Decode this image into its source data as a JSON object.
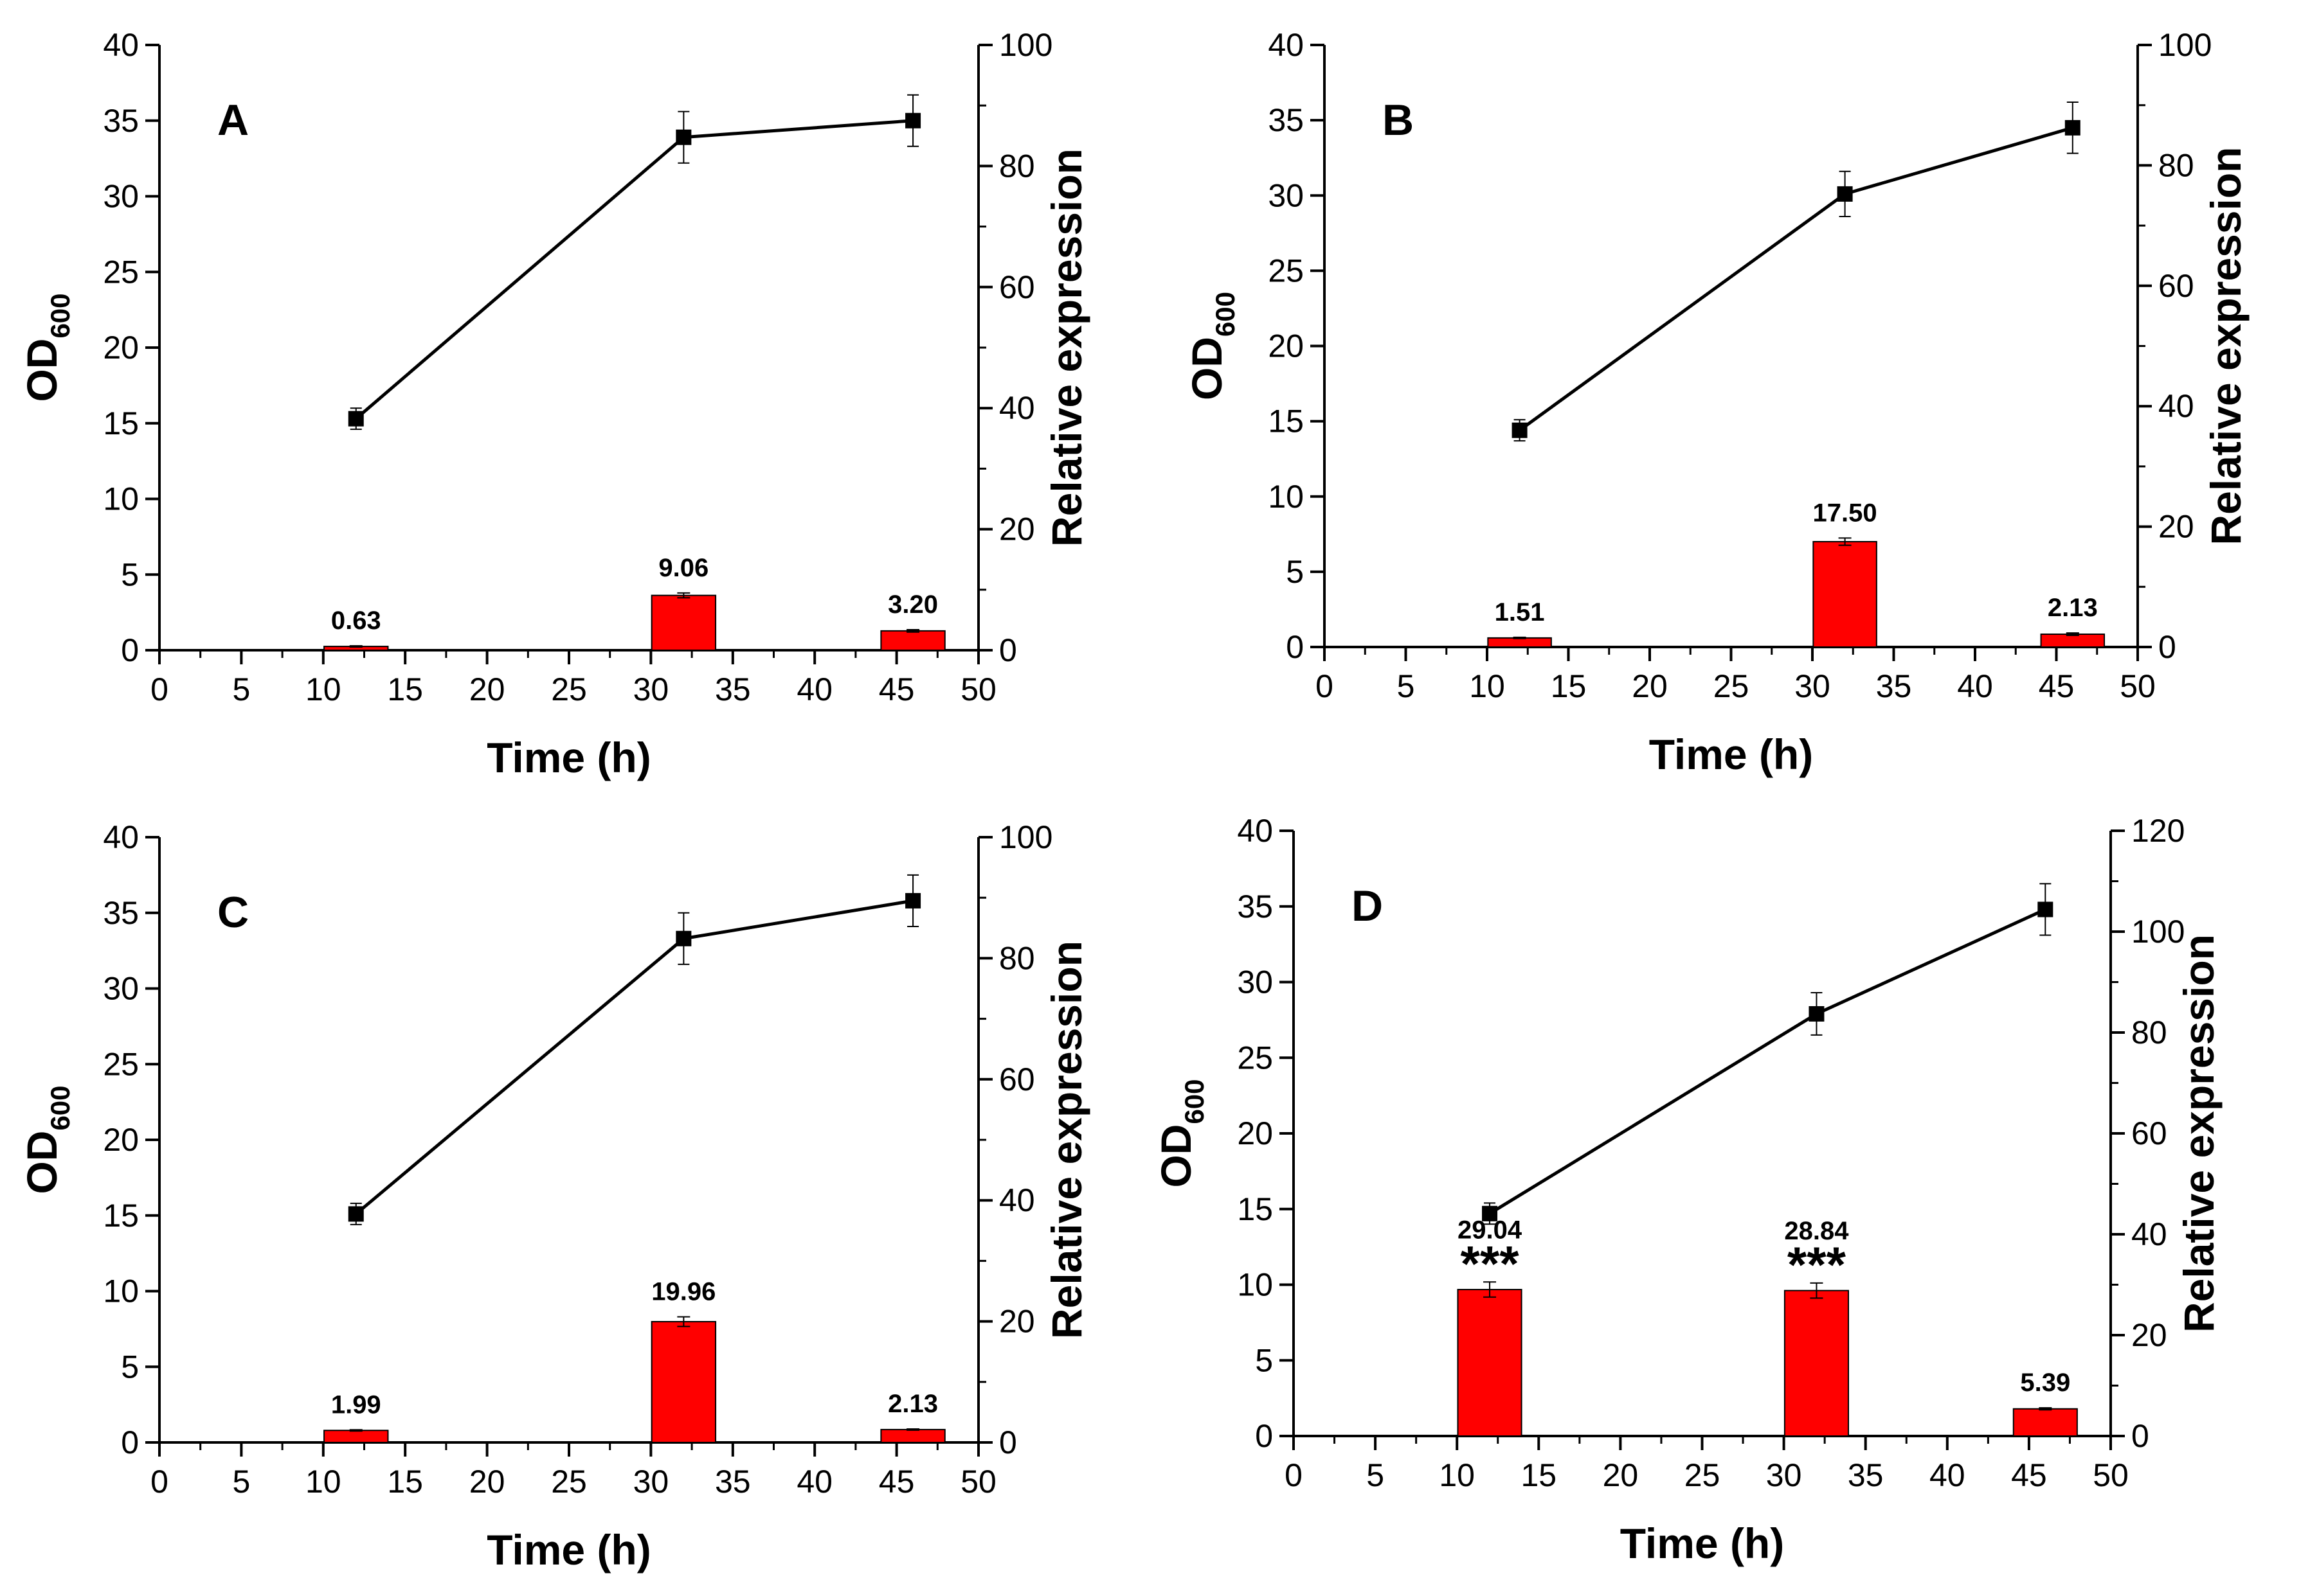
{
  "chart_data": [
    {
      "type": "bar+line",
      "panel": "A",
      "xlabel": "Time (h)",
      "ylabel_left": "OD",
      "ylabel_left_sub": "600",
      "ylabel_right": "Relative expression",
      "xlim": [
        0,
        50
      ],
      "ylim_left": [
        0,
        40
      ],
      "ylim_right": [
        0,
        100
      ],
      "x_ticks": [
        0,
        5,
        10,
        15,
        20,
        25,
        30,
        35,
        40,
        45,
        50
      ],
      "y_left_ticks": [
        0,
        5,
        10,
        15,
        20,
        25,
        30,
        35,
        40
      ],
      "y_right_ticks": [
        0,
        20,
        40,
        60,
        80,
        100
      ],
      "line_series": {
        "name": "OD600",
        "x": [
          12,
          32,
          46
        ],
        "y": [
          15.3,
          33.9,
          35.0
        ],
        "err": [
          0.7,
          1.7,
          1.7
        ]
      },
      "bar_series": {
        "name": "Relative expression",
        "x": [
          12,
          32,
          46
        ],
        "values": [
          0.63,
          9.06,
          3.2
        ],
        "labels": [
          "0.63",
          "9.06",
          "3.20"
        ],
        "err": [
          0.1,
          0.4,
          0.2
        ],
        "significance": [
          "",
          "",
          ""
        ]
      }
    },
    {
      "type": "bar+line",
      "panel": "B",
      "xlabel": "Time (h)",
      "ylabel_left": "OD",
      "ylabel_left_sub": "600",
      "ylabel_right": "Relative expression",
      "xlim": [
        0,
        50
      ],
      "ylim_left": [
        0,
        40
      ],
      "ylim_right": [
        0,
        100
      ],
      "x_ticks": [
        0,
        5,
        10,
        15,
        20,
        25,
        30,
        35,
        40,
        45,
        50
      ],
      "y_left_ticks": [
        0,
        5,
        10,
        15,
        20,
        25,
        30,
        35,
        40
      ],
      "y_right_ticks": [
        0,
        20,
        40,
        60,
        80,
        100
      ],
      "line_series": {
        "name": "OD600",
        "x": [
          12,
          32,
          46
        ],
        "y": [
          14.4,
          30.1,
          34.5
        ],
        "err": [
          0.7,
          1.5,
          1.7
        ]
      },
      "bar_series": {
        "name": "Relative expression",
        "x": [
          12,
          32,
          46
        ],
        "values": [
          1.51,
          17.5,
          2.13
        ],
        "labels": [
          "1.51",
          "17.50",
          "2.13"
        ],
        "err": [
          0.1,
          0.6,
          0.2
        ],
        "significance": [
          "",
          "",
          ""
        ]
      }
    },
    {
      "type": "bar+line",
      "panel": "C",
      "xlabel": "Time (h)",
      "ylabel_left": "OD",
      "ylabel_left_sub": "600",
      "ylabel_right": "Relative expression",
      "xlim": [
        0,
        50
      ],
      "ylim_left": [
        0,
        40
      ],
      "ylim_right": [
        0,
        100
      ],
      "x_ticks": [
        0,
        5,
        10,
        15,
        20,
        25,
        30,
        35,
        40,
        45,
        50
      ],
      "y_left_ticks": [
        0,
        5,
        10,
        15,
        20,
        25,
        30,
        35,
        40
      ],
      "y_right_ticks": [
        0,
        20,
        40,
        60,
        80,
        100
      ],
      "line_series": {
        "name": "OD600",
        "x": [
          12,
          32,
          46
        ],
        "y": [
          15.1,
          33.3,
          35.8
        ],
        "err": [
          0.7,
          1.7,
          1.7
        ]
      },
      "bar_series": {
        "name": "Relative expression",
        "x": [
          12,
          32,
          46
        ],
        "values": [
          1.99,
          19.96,
          2.13
        ],
        "labels": [
          "1.99",
          "19.96",
          "2.13"
        ],
        "err": [
          0.1,
          0.8,
          0.1
        ],
        "significance": [
          "",
          "",
          ""
        ]
      }
    },
    {
      "type": "bar+line",
      "panel": "D",
      "xlabel": "Time (h)",
      "ylabel_left": "OD",
      "ylabel_left_sub": "600",
      "ylabel_right": "Relative expression",
      "xlim": [
        0,
        50
      ],
      "ylim_left": [
        0,
        40
      ],
      "ylim_right": [
        0,
        120
      ],
      "x_ticks": [
        0,
        5,
        10,
        15,
        20,
        25,
        30,
        35,
        40,
        45,
        50
      ],
      "y_left_ticks": [
        0,
        5,
        10,
        15,
        20,
        25,
        30,
        35,
        40
      ],
      "y_right_ticks": [
        0,
        20,
        40,
        60,
        80,
        100,
        120
      ],
      "line_series": {
        "name": "OD600",
        "x": [
          12,
          32,
          46
        ],
        "y": [
          14.7,
          27.9,
          34.8
        ],
        "err": [
          0.7,
          1.4,
          1.7
        ]
      },
      "bar_series": {
        "name": "Relative expression",
        "x": [
          12,
          32,
          46
        ],
        "values": [
          29.04,
          28.84,
          5.39
        ],
        "labels": [
          "29.04",
          "28.84",
          "5.39"
        ],
        "err": [
          1.5,
          1.5,
          0.2
        ],
        "significance": [
          "***",
          "***",
          ""
        ]
      }
    }
  ],
  "colors": {
    "bar_fill": "#ff0000",
    "bar_stroke": "#000000",
    "line": "#000000",
    "marker": "#000000",
    "axis": "#000000",
    "background": "#ffffff"
  }
}
